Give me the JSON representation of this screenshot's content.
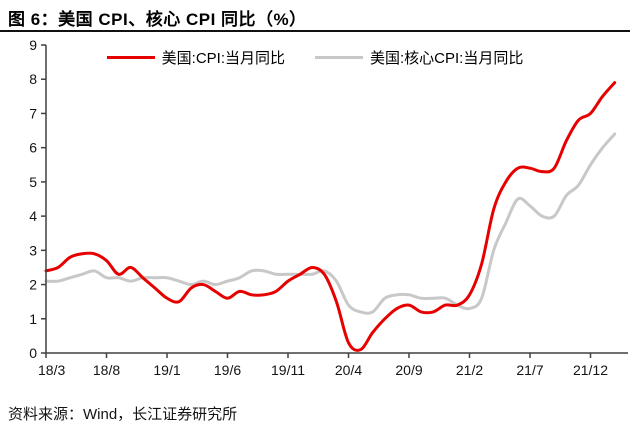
{
  "header": {
    "title": "图 6：美国 CPI、核心 CPI 同比（%）"
  },
  "footer": {
    "source": "资料来源：Wind，长江证券研究所"
  },
  "colors": {
    "cpi_red": "#e60000",
    "core_gray": "#c8c8c8",
    "axis": "#404040",
    "text": "#141414"
  },
  "chart_data": {
    "type": "line",
    "title": "图 6：美国 CPI、核心 CPI 同比（%）",
    "xlabel": "",
    "ylabel": "",
    "ylim": [
      0,
      9
    ],
    "yticks": [
      0,
      1,
      2,
      3,
      4,
      5,
      6,
      7,
      8,
      9
    ],
    "grid": false,
    "legend_position": "top",
    "x": [
      "18/3",
      "18/4",
      "18/5",
      "18/6",
      "18/7",
      "18/8",
      "18/9",
      "18/10",
      "18/11",
      "18/12",
      "19/1",
      "19/2",
      "19/3",
      "19/4",
      "19/5",
      "19/6",
      "19/7",
      "19/8",
      "19/9",
      "19/10",
      "19/11",
      "19/12",
      "20/1",
      "20/2",
      "20/3",
      "20/4",
      "20/5",
      "20/6",
      "20/7",
      "20/8",
      "20/9",
      "20/10",
      "20/11",
      "20/12",
      "21/1",
      "21/2",
      "21/3",
      "21/4",
      "21/5",
      "21/6",
      "21/7",
      "21/8",
      "21/9",
      "21/10",
      "21/11",
      "21/12",
      "22/1",
      "22/2"
    ],
    "xtick_labels": [
      "18/3",
      "18/8",
      "19/1",
      "19/6",
      "19/11",
      "20/4",
      "20/9",
      "21/2",
      "21/7",
      "21/12"
    ],
    "xtick_indices": [
      0,
      5,
      10,
      15,
      20,
      25,
      30,
      35,
      40,
      45
    ],
    "series": [
      {
        "name": "美国:CPI:当月同比",
        "color": "#e60000",
        "values": [
          2.4,
          2.5,
          2.8,
          2.9,
          2.9,
          2.7,
          2.3,
          2.5,
          2.2,
          1.9,
          1.6,
          1.5,
          1.9,
          2.0,
          1.8,
          1.6,
          1.8,
          1.7,
          1.7,
          1.8,
          2.1,
          2.3,
          2.5,
          2.3,
          1.5,
          0.3,
          0.1,
          0.6,
          1.0,
          1.3,
          1.4,
          1.2,
          1.2,
          1.4,
          1.4,
          1.7,
          2.6,
          4.2,
          5.0,
          5.4,
          5.4,
          5.3,
          5.4,
          6.2,
          6.8,
          7.0,
          7.5,
          7.9
        ]
      },
      {
        "name": "美国:核心CPI:当月同比",
        "color": "#c8c8c8",
        "values": [
          2.1,
          2.1,
          2.2,
          2.3,
          2.4,
          2.2,
          2.2,
          2.1,
          2.2,
          2.2,
          2.2,
          2.1,
          2.0,
          2.1,
          2.0,
          2.1,
          2.2,
          2.4,
          2.4,
          2.3,
          2.3,
          2.3,
          2.3,
          2.4,
          2.1,
          1.4,
          1.2,
          1.2,
          1.6,
          1.7,
          1.7,
          1.6,
          1.6,
          1.6,
          1.4,
          1.3,
          1.6,
          3.0,
          3.8,
          4.5,
          4.3,
          4.0,
          4.0,
          4.6,
          4.9,
          5.5,
          6.0,
          6.4
        ]
      }
    ]
  }
}
